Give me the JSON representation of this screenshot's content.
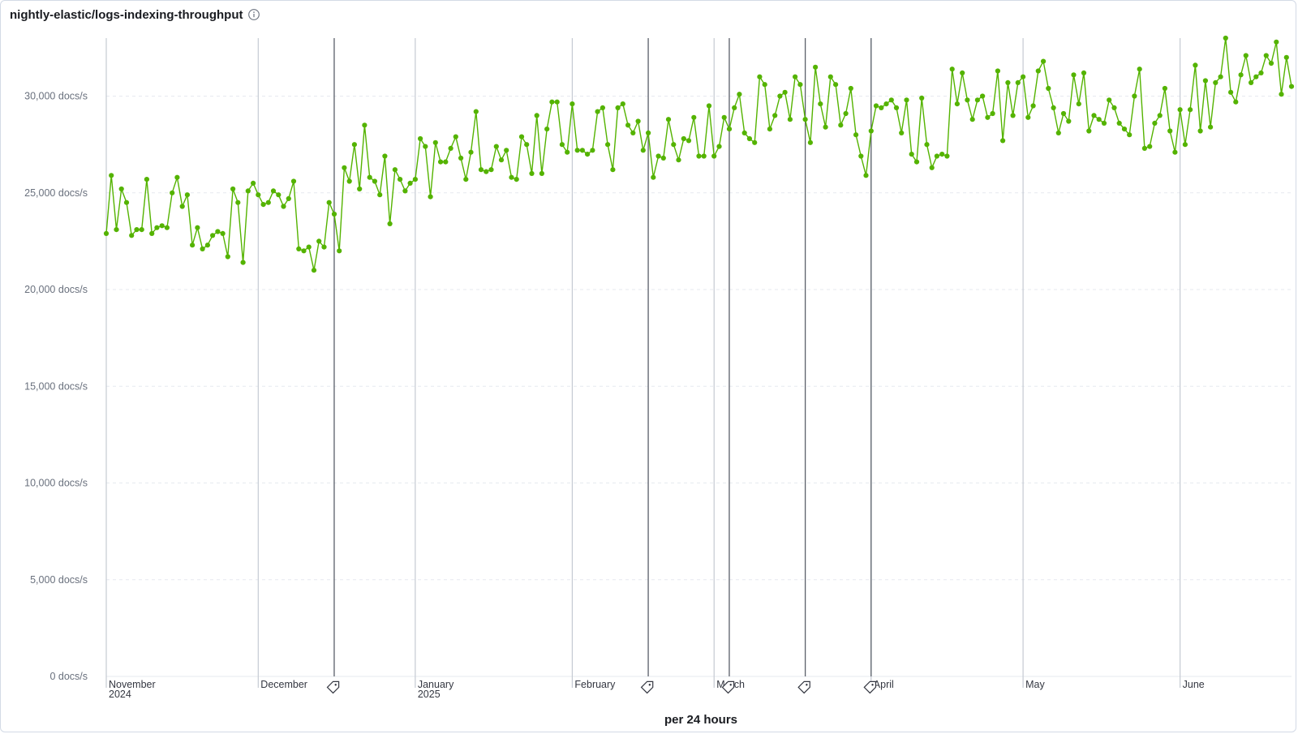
{
  "panel": {
    "title": "nightly-elastic/logs-indexing-throughput",
    "info_icon": "info-icon"
  },
  "chart_data": {
    "type": "line",
    "x_axis_type": "date",
    "xlabel": "per 24 hours",
    "ylabel": "",
    "ylim": [
      0,
      33000
    ],
    "y_tick_values": [
      0,
      5000,
      10000,
      15000,
      20000,
      25000,
      30000
    ],
    "y_tick_labels": [
      "0 docs/s",
      "5,000 docs/s",
      "10,000 docs/s",
      "15,000 docs/s",
      "20,000 docs/s",
      "25,000 docs/s",
      "30,000 docs/s"
    ],
    "x_range": [
      "2024-11-01",
      "2025-06-23"
    ],
    "x_ticks": [
      {
        "date": "2024-11-01",
        "label": "November",
        "sub": "2024"
      },
      {
        "date": "2024-12-01",
        "label": "December",
        "sub": ""
      },
      {
        "date": "2025-01-01",
        "label": "January",
        "sub": "2025"
      },
      {
        "date": "2025-02-01",
        "label": "February",
        "sub": ""
      },
      {
        "date": "2025-03-01",
        "label": "March",
        "sub": ""
      },
      {
        "date": "2025-04-01",
        "label": "April",
        "sub": ""
      },
      {
        "date": "2025-05-01",
        "label": "May",
        "sub": ""
      },
      {
        "date": "2025-06-01",
        "label": "June",
        "sub": ""
      }
    ],
    "annotations": [
      "2024-12-16",
      "2025-02-16",
      "2025-03-04",
      "2025-03-19",
      "2025-04-01"
    ],
    "grid": true,
    "color": "#54b300",
    "series": [
      {
        "x": [
          "2024-11-01",
          "2024-11-02",
          "2024-11-03",
          "2024-11-04",
          "2024-11-05",
          "2024-11-06",
          "2024-11-07",
          "2024-11-08",
          "2024-11-09",
          "2024-11-10",
          "2024-11-11",
          "2024-11-12",
          "2024-11-13",
          "2024-11-14",
          "2024-11-15",
          "2024-11-16",
          "2024-11-17",
          "2024-11-18",
          "2024-11-19",
          "2024-11-20",
          "2024-11-21",
          "2024-11-22",
          "2024-11-23",
          "2024-11-24",
          "2024-11-25",
          "2024-11-26",
          "2024-11-27",
          "2024-11-28",
          "2024-11-29",
          "2024-11-30",
          "2024-12-01",
          "2024-12-02",
          "2024-12-03",
          "2024-12-04",
          "2024-12-05",
          "2024-12-06",
          "2024-12-07",
          "2024-12-08",
          "2024-12-09",
          "2024-12-10",
          "2024-12-11",
          "2024-12-12",
          "2024-12-13",
          "2024-12-14",
          "2024-12-15",
          "2024-12-16",
          "2024-12-17",
          "2024-12-18",
          "2024-12-19",
          "2024-12-20",
          "2024-12-21",
          "2024-12-22",
          "2024-12-23",
          "2024-12-24",
          "2024-12-25",
          "2024-12-26",
          "2024-12-27",
          "2024-12-28",
          "2024-12-29",
          "2024-12-30",
          "2024-12-31",
          "2025-01-01",
          "2025-01-02",
          "2025-01-03",
          "2025-01-04",
          "2025-01-05",
          "2025-01-06",
          "2025-01-07",
          "2025-01-08",
          "2025-01-09",
          "2025-01-10",
          "2025-01-11",
          "2025-01-12",
          "2025-01-13",
          "2025-01-14",
          "2025-01-15",
          "2025-01-16",
          "2025-01-17",
          "2025-01-18",
          "2025-01-19",
          "2025-01-20",
          "2025-01-21",
          "2025-01-22",
          "2025-01-23",
          "2025-01-24",
          "2025-01-25",
          "2025-01-26",
          "2025-01-27",
          "2025-01-28",
          "2025-01-29",
          "2025-01-30",
          "2025-01-31",
          "2025-02-01",
          "2025-02-02",
          "2025-02-03",
          "2025-02-04",
          "2025-02-05",
          "2025-02-06",
          "2025-02-07",
          "2025-02-08",
          "2025-02-09",
          "2025-02-10",
          "2025-02-11",
          "2025-02-12",
          "2025-02-13",
          "2025-02-14",
          "2025-02-15",
          "2025-02-16",
          "2025-02-17",
          "2025-02-18",
          "2025-02-19",
          "2025-02-20",
          "2025-02-21",
          "2025-02-22",
          "2025-02-23",
          "2025-02-24",
          "2025-02-25",
          "2025-02-26",
          "2025-02-27",
          "2025-02-28",
          "2025-03-01",
          "2025-03-02",
          "2025-03-03",
          "2025-03-04",
          "2025-03-05",
          "2025-03-06",
          "2025-03-07",
          "2025-03-08",
          "2025-03-09",
          "2025-03-10",
          "2025-03-11",
          "2025-03-12",
          "2025-03-13",
          "2025-03-14",
          "2025-03-15",
          "2025-03-16",
          "2025-03-17",
          "2025-03-18",
          "2025-03-19",
          "2025-03-20",
          "2025-03-21",
          "2025-03-22",
          "2025-03-23",
          "2025-03-24",
          "2025-03-25",
          "2025-03-26",
          "2025-03-27",
          "2025-03-28",
          "2025-03-29",
          "2025-03-30",
          "2025-03-31",
          "2025-04-01",
          "2025-04-02",
          "2025-04-03",
          "2025-04-04",
          "2025-04-05",
          "2025-04-06",
          "2025-04-07",
          "2025-04-08",
          "2025-04-09",
          "2025-04-10",
          "2025-04-11",
          "2025-04-12",
          "2025-04-13",
          "2025-04-14",
          "2025-04-15",
          "2025-04-16",
          "2025-04-17",
          "2025-04-18",
          "2025-04-19",
          "2025-04-20",
          "2025-04-21",
          "2025-04-22",
          "2025-04-23",
          "2025-04-24",
          "2025-04-25",
          "2025-04-26",
          "2025-04-27",
          "2025-04-28",
          "2025-04-29",
          "2025-04-30",
          "2025-05-01",
          "2025-05-02",
          "2025-05-03",
          "2025-05-04",
          "2025-05-05",
          "2025-05-06",
          "2025-05-07",
          "2025-05-08",
          "2025-05-09",
          "2025-05-10",
          "2025-05-11",
          "2025-05-12",
          "2025-05-13",
          "2025-05-14",
          "2025-05-15",
          "2025-05-16",
          "2025-05-17",
          "2025-05-18",
          "2025-05-19",
          "2025-05-20",
          "2025-05-21",
          "2025-05-22",
          "2025-05-23",
          "2025-05-24",
          "2025-05-25",
          "2025-05-26",
          "2025-05-27",
          "2025-05-28",
          "2025-05-29",
          "2025-05-30",
          "2025-05-31",
          "2025-06-01",
          "2025-06-02",
          "2025-06-03",
          "2025-06-04",
          "2025-06-05",
          "2025-06-06",
          "2025-06-07",
          "2025-06-08",
          "2025-06-09",
          "2025-06-10",
          "2025-06-11",
          "2025-06-12",
          "2025-06-13",
          "2025-06-14",
          "2025-06-15",
          "2025-06-16",
          "2025-06-17",
          "2025-06-18",
          "2025-06-19",
          "2025-06-20",
          "2025-06-21",
          "2025-06-22",
          "2025-06-23"
        ],
        "values": [
          22900,
          25900,
          23100,
          25200,
          24500,
          22800,
          23100,
          23100,
          25700,
          22900,
          23200,
          23300,
          23200,
          25000,
          25800,
          24300,
          24900,
          22300,
          23200,
          22100,
          22300,
          22800,
          23000,
          22900,
          21700,
          25200,
          24500,
          21400,
          25100,
          25500,
          24900,
          24400,
          24500,
          25100,
          24900,
          24300,
          24700,
          25600,
          22100,
          22000,
          22200,
          21000,
          22500,
          22200,
          24500,
          23900,
          22000,
          26300,
          25600,
          27500,
          25200,
          28500,
          25800,
          25600,
          24900,
          26900,
          23400,
          26200,
          25700,
          25100,
          25500,
          25700,
          27800,
          27400,
          24800,
          27600,
          26600,
          26600,
          27300,
          27900,
          26800,
          25700,
          27100,
          29200,
          26200,
          26100,
          26200,
          27400,
          26700,
          27200,
          25800,
          25700,
          27900,
          27500,
          26000,
          29000,
          26000,
          28300,
          29700,
          29700,
          27500,
          27100,
          29600,
          27200,
          27200,
          27000,
          27200,
          29200,
          29400,
          27500,
          26200,
          29400,
          29600,
          28500,
          28100,
          28700,
          27200,
          28100,
          25800,
          26900,
          26800,
          28800,
          27500,
          26700,
          27800,
          27700,
          28900,
          26900,
          26900,
          29500,
          26900,
          27400,
          28900,
          28300,
          29400,
          30100,
          28100,
          27800,
          27600,
          31000,
          30600,
          28300,
          29000,
          30000,
          30200,
          28800,
          31000,
          30600,
          28800,
          27600,
          31500,
          29600,
          28400,
          31000,
          30600,
          28500,
          29100,
          30400,
          28000,
          26900,
          25900,
          28200,
          29500,
          29400,
          29600,
          29800,
          29400,
          28100,
          29800,
          27000,
          26600,
          29900,
          27500,
          26300,
          26900,
          27000,
          26900,
          31400,
          29600,
          31200,
          29800,
          28800,
          29800,
          30000,
          28900,
          29100,
          31300,
          27700,
          30700,
          29000,
          30700,
          31000,
          28900,
          29500,
          31300,
          31800,
          30400,
          29400,
          28100,
          29100,
          28700,
          31100,
          29600,
          31200,
          28200,
          29000,
          28800,
          28600,
          29800,
          29400,
          28600,
          28300,
          28000,
          30000,
          31400,
          27300,
          27400,
          28600,
          29000,
          30400,
          28200,
          27100,
          29300,
          27500,
          29300,
          31600,
          28200,
          30800,
          28400,
          30700,
          31000,
          33000,
          30200,
          29700,
          31100,
          32100,
          30700,
          31000,
          31200,
          32100,
          31700,
          32800,
          30100,
          32000,
          30500
        ]
      }
    ]
  }
}
